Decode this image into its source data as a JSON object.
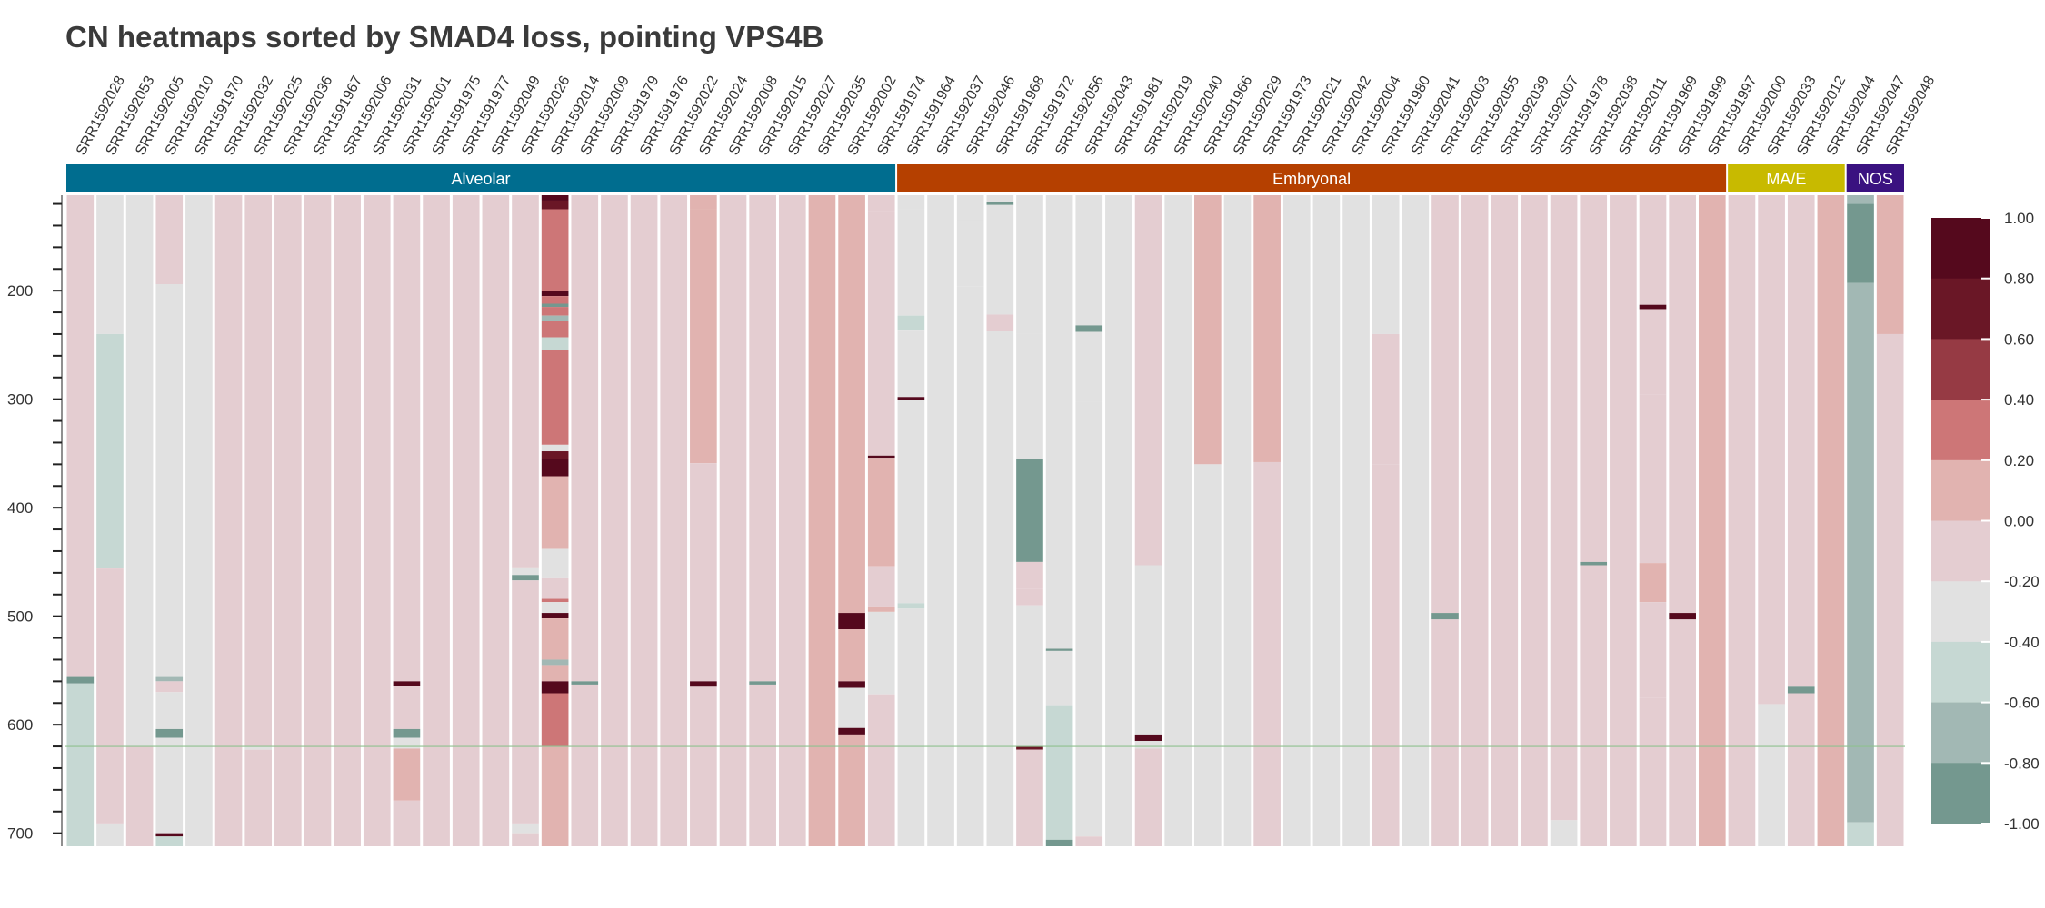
{
  "title": "CN heatmaps sorted by SMAD4 loss, pointing VPS4B",
  "chart_data": {
    "type": "heatmap",
    "title": "CN heatmaps sorted by SMAD4 loss, pointing VPS4B",
    "samples": [
      "SRR1592028",
      "SRR1592053",
      "SRR1592005",
      "SRR1592010",
      "SRR1591970",
      "SRR1592032",
      "SRR1592025",
      "SRR1592036",
      "SRR1591967",
      "SRR1592006",
      "SRR1592031",
      "SRR1592001",
      "SRR1591975",
      "SRR1591977",
      "SRR1592049",
      "SRR1592026",
      "SRR1592014",
      "SRR1592009",
      "SRR1591979",
      "SRR1591976",
      "SRR1592022",
      "SRR1592024",
      "SRR1592008",
      "SRR1592015",
      "SRR1592027",
      "SRR1592035",
      "SRR1592002",
      "SRR1591974",
      "SRR1591964",
      "SRR1592037",
      "SRR1592046",
      "SRR1591968",
      "SRR1591972",
      "SRR1592056",
      "SRR1592043",
      "SRR1591981",
      "SRR1592019",
      "SRR1592040",
      "SRR1591966",
      "SRR1592029",
      "SRR1591973",
      "SRR1592021",
      "SRR1592042",
      "SRR1592004",
      "SRR1591980",
      "SRR1592041",
      "SRR1592003",
      "SRR1592055",
      "SRR1592039",
      "SRR1592007",
      "SRR1591978",
      "SRR1592038",
      "SRR1592011",
      "SRR1591969",
      "SRR1591999",
      "SRR1591997",
      "SRR1592000",
      "SRR1592033",
      "SRR1592012",
      "SRR1592044",
      "SRR1592047",
      "SRR1592048"
    ],
    "groups": [
      {
        "label": "Alveolar",
        "count": 28,
        "color": "#006d8f"
      },
      {
        "label": "Embryonal",
        "count": 28,
        "color": "#b54000"
      },
      {
        "label": "MA/E",
        "count": 4,
        "color": "#c8ba00"
      },
      {
        "label": "NOS",
        "count": 2,
        "color": "#3a1280"
      }
    ],
    "y_ticks": [
      200,
      300,
      400,
      500,
      600,
      700
    ],
    "ylim": [
      112,
      712
    ],
    "highlight_line_y": 620,
    "colorbar": {
      "ticks": [
        "1.00",
        "0.80",
        "0.60",
        "0.40",
        "0.20",
        "0.00",
        "-0.20",
        "-0.40",
        "-0.60",
        "-0.80",
        "-1.00"
      ],
      "range": [
        -1.0,
        1.0
      ],
      "bins": [
        {
          "from": -1.0,
          "to": -0.8,
          "color": "#74988f"
        },
        {
          "from": -0.8,
          "to": -0.6,
          "color": "#a2b8b4"
        },
        {
          "from": -0.6,
          "to": -0.4,
          "color": "#c6d8d3"
        },
        {
          "from": -0.4,
          "to": -0.2,
          "color": "#e1e1e1"
        },
        {
          "from": -0.2,
          "to": 0.0,
          "color": "#e4cdd1"
        },
        {
          "from": 0.0,
          "to": 0.2,
          "color": "#e1b3b0"
        },
        {
          "from": 0.2,
          "to": 0.4,
          "color": "#cd7677"
        },
        {
          "from": 0.4,
          "to": 0.6,
          "color": "#963a44"
        },
        {
          "from": 0.6,
          "to": 0.8,
          "color": "#6a1726"
        },
        {
          "from": 0.8,
          "to": 1.0,
          "color": "#55091d"
        }
      ]
    },
    "columns": [
      [
        [
          112,
          556,
          -0.1
        ],
        [
          556,
          562,
          -0.9
        ],
        [
          562,
          712,
          -0.5
        ]
      ],
      [
        [
          112,
          240,
          -0.3
        ],
        [
          240,
          456,
          -0.5
        ],
        [
          456,
          691,
          -0.1
        ],
        [
          691,
          712,
          -0.3
        ]
      ],
      [
        [
          112,
          620,
          -0.3
        ],
        [
          620,
          712,
          -0.1
        ]
      ],
      [
        [
          112,
          194,
          -0.1
        ],
        [
          194,
          453,
          -0.3
        ],
        [
          453,
          556,
          -0.3
        ],
        [
          556,
          560,
          -0.7
        ],
        [
          560,
          570,
          -0.1
        ],
        [
          570,
          604,
          -0.3
        ],
        [
          604,
          612,
          -0.9
        ],
        [
          612,
          700,
          -0.3
        ],
        [
          700,
          703,
          0.9
        ],
        [
          703,
          712,
          -0.5
        ]
      ],
      [
        [
          112,
          712,
          -0.3
        ]
      ],
      [
        [
          112,
          712,
          -0.1
        ]
      ],
      [
        [
          112,
          620,
          -0.1
        ],
        [
          620,
          623,
          -0.3
        ],
        [
          623,
          712,
          -0.1
        ]
      ],
      [
        [
          112,
          712,
          -0.1
        ]
      ],
      [
        [
          112,
          712,
          -0.1
        ]
      ],
      [
        [
          112,
          712,
          -0.1
        ]
      ],
      [
        [
          112,
          712,
          -0.1
        ]
      ],
      [
        [
          112,
          560,
          -0.1
        ],
        [
          560,
          564,
          0.9
        ],
        [
          564,
          604,
          -0.1
        ],
        [
          604,
          612,
          -0.9
        ],
        [
          612,
          622,
          -0.3
        ],
        [
          622,
          670,
          0.1
        ],
        [
          670,
          712,
          -0.1
        ]
      ],
      [
        [
          112,
          712,
          -0.1
        ]
      ],
      [
        [
          112,
          712,
          -0.1
        ]
      ],
      [
        [
          112,
          712,
          -0.1
        ]
      ],
      [
        [
          112,
          455,
          -0.1
        ],
        [
          455,
          462,
          -0.3
        ],
        [
          462,
          467,
          -0.9
        ],
        [
          467,
          691,
          -0.1
        ],
        [
          691,
          700,
          -0.3
        ],
        [
          700,
          712,
          -0.1
        ]
      ],
      [
        [
          112,
          117,
          0.9
        ],
        [
          117,
          125,
          0.7
        ],
        [
          125,
          200,
          0.3
        ],
        [
          200,
          205,
          0.9
        ],
        [
          205,
          212,
          0.3
        ],
        [
          212,
          215,
          -0.9
        ],
        [
          215,
          223,
          0.3
        ],
        [
          223,
          228,
          -0.7
        ],
        [
          228,
          243,
          0.3
        ],
        [
          243,
          255,
          -0.5
        ],
        [
          255,
          342,
          0.3
        ],
        [
          342,
          348,
          -0.3
        ],
        [
          348,
          355,
          0.7
        ],
        [
          355,
          371,
          0.9
        ],
        [
          371,
          438,
          0.1
        ],
        [
          438,
          465,
          -0.3
        ],
        [
          465,
          484,
          -0.1
        ],
        [
          484,
          487,
          0.3
        ],
        [
          487,
          497,
          -0.3
        ],
        [
          497,
          502,
          0.9
        ],
        [
          502,
          540,
          0.1
        ],
        [
          540,
          545,
          -0.7
        ],
        [
          545,
          560,
          0.1
        ],
        [
          560,
          571,
          0.9
        ],
        [
          571,
          620,
          0.3
        ],
        [
          620,
          712,
          0.1
        ]
      ],
      [
        [
          112,
          560,
          -0.1
        ],
        [
          560,
          563,
          -0.9
        ],
        [
          563,
          712,
          -0.1
        ]
      ],
      [
        [
          112,
          712,
          -0.1
        ]
      ],
      [
        [
          112,
          712,
          -0.1
        ]
      ],
      [
        [
          112,
          712,
          -0.1
        ]
      ],
      [
        [
          112,
          125,
          0.1
        ],
        [
          125,
          359,
          0.1
        ],
        [
          359,
          453,
          -0.1
        ],
        [
          453,
          560,
          -0.1
        ],
        [
          560,
          565,
          0.9
        ],
        [
          565,
          712,
          -0.1
        ]
      ],
      [
        [
          112,
          712,
          -0.1
        ]
      ],
      [
        [
          112,
          560,
          -0.1
        ],
        [
          560,
          563,
          -0.9
        ],
        [
          563,
          712,
          -0.1
        ]
      ],
      [
        [
          112,
          712,
          -0.1
        ]
      ],
      [
        [
          112,
          712,
          0.1
        ]
      ],
      [
        [
          112,
          497,
          0.1
        ],
        [
          497,
          512,
          0.9
        ],
        [
          512,
          560,
          0.1
        ],
        [
          560,
          566,
          0.9
        ],
        [
          566,
          603,
          -0.3
        ],
        [
          603,
          609,
          0.9
        ],
        [
          609,
          620,
          0.1
        ],
        [
          620,
          712,
          0.1
        ]
      ],
      [
        [
          112,
          127,
          -0.1
        ],
        [
          127,
          352,
          -0.1
        ],
        [
          352,
          354,
          0.9
        ],
        [
          354,
          454,
          0.1
        ],
        [
          454,
          491,
          -0.1
        ],
        [
          491,
          496,
          0.1
        ],
        [
          496,
          572,
          -0.3
        ],
        [
          572,
          712,
          -0.1
        ]
      ],
      [
        [
          112,
          125,
          -0.3
        ],
        [
          125,
          223,
          -0.3
        ],
        [
          223,
          236,
          -0.5
        ],
        [
          236,
          298,
          -0.3
        ],
        [
          298,
          301,
          0.9
        ],
        [
          301,
          488,
          -0.3
        ],
        [
          488,
          493,
          -0.5
        ],
        [
          493,
          712,
          -0.3
        ]
      ],
      [
        [
          112,
          712,
          -0.3
        ]
      ],
      [
        [
          112,
          135,
          -0.3
        ],
        [
          135,
          196,
          -0.3
        ],
        [
          196,
          712,
          -0.3
        ]
      ],
      [
        [
          112,
          118,
          -0.3
        ],
        [
          118,
          121,
          -0.9
        ],
        [
          121,
          222,
          -0.3
        ],
        [
          222,
          237,
          -0.1
        ],
        [
          237,
          712,
          -0.3
        ]
      ],
      [
        [
          112,
          240,
          -0.3
        ],
        [
          240,
          355,
          -0.3
        ],
        [
          355,
          450,
          -0.9
        ],
        [
          450,
          475,
          -0.1
        ],
        [
          475,
          490,
          -0.1
        ],
        [
          490,
          620,
          -0.3
        ],
        [
          620,
          623,
          0.7
        ],
        [
          623,
          712,
          -0.1
        ]
      ],
      [
        [
          112,
          530,
          -0.3
        ],
        [
          530,
          532,
          -0.9
        ],
        [
          532,
          582,
          -0.3
        ],
        [
          582,
          706,
          -0.5
        ],
        [
          706,
          712,
          -0.9
        ]
      ],
      [
        [
          112,
          232,
          -0.3
        ],
        [
          232,
          238,
          -0.9
        ],
        [
          238,
          302,
          -0.3
        ],
        [
          302,
          703,
          -0.3
        ],
        [
          703,
          712,
          -0.1
        ]
      ],
      [
        [
          112,
          712,
          -0.3
        ]
      ],
      [
        [
          112,
          453,
          -0.1
        ],
        [
          453,
          609,
          -0.3
        ],
        [
          609,
          615,
          0.9
        ],
        [
          615,
          622,
          -0.3
        ],
        [
          622,
          712,
          -0.1
        ]
      ],
      [
        [
          112,
          712,
          -0.3
        ]
      ],
      [
        [
          112,
          360,
          0.1
        ],
        [
          360,
          712,
          -0.3
        ]
      ],
      [
        [
          112,
          712,
          -0.3
        ]
      ],
      [
        [
          112,
          358,
          0.1
        ],
        [
          358,
          712,
          -0.1
        ]
      ],
      [
        [
          112,
          712,
          -0.3
        ]
      ],
      [
        [
          112,
          712,
          -0.3
        ]
      ],
      [
        [
          112,
          571,
          -0.3
        ],
        [
          571,
          712,
          -0.3
        ]
      ],
      [
        [
          112,
          240,
          -0.3
        ],
        [
          240,
          360,
          -0.1
        ],
        [
          360,
          712,
          -0.1
        ]
      ],
      [
        [
          112,
          712,
          -0.3
        ]
      ],
      [
        [
          112,
          497,
          -0.1
        ],
        [
          497,
          503,
          -0.9
        ],
        [
          503,
          712,
          -0.1
        ]
      ],
      [
        [
          112,
          712,
          -0.1
        ]
      ],
      [
        [
          112,
          712,
          -0.1
        ]
      ],
      [
        [
          112,
          712,
          -0.1
        ]
      ],
      [
        [
          112,
          688,
          -0.1
        ],
        [
          688,
          712,
          -0.3
        ]
      ],
      [
        [
          112,
          450,
          -0.1
        ],
        [
          450,
          453,
          -0.9
        ],
        [
          453,
          712,
          -0.1
        ]
      ],
      [
        [
          112,
          712,
          -0.1
        ]
      ],
      [
        [
          112,
          213,
          -0.1
        ],
        [
          213,
          217,
          0.9
        ],
        [
          217,
          296,
          -0.1
        ],
        [
          296,
          451,
          -0.1
        ],
        [
          451,
          487,
          0.1
        ],
        [
          487,
          575,
          -0.1
        ],
        [
          575,
          712,
          -0.1
        ]
      ],
      [
        [
          112,
          497,
          -0.1
        ],
        [
          497,
          503,
          0.9
        ],
        [
          503,
          712,
          -0.1
        ]
      ],
      [
        [
          112,
          712,
          0.1
        ]
      ],
      [
        [
          112,
          712,
          -0.1
        ]
      ],
      [
        [
          112,
          581,
          -0.1
        ],
        [
          581,
          712,
          -0.3
        ]
      ],
      [
        [
          112,
          565,
          -0.1
        ],
        [
          565,
          571,
          -0.9
        ],
        [
          571,
          712,
          -0.1
        ]
      ],
      [
        [
          112,
          712,
          0.1
        ]
      ],
      [
        [
          112,
          120,
          -0.7
        ],
        [
          120,
          193,
          -0.9
        ],
        [
          193,
          690,
          -0.7
        ],
        [
          690,
          712,
          -0.5
        ]
      ],
      [
        [
          112,
          240,
          0.1
        ],
        [
          240,
          712,
          -0.1
        ]
      ]
    ]
  }
}
